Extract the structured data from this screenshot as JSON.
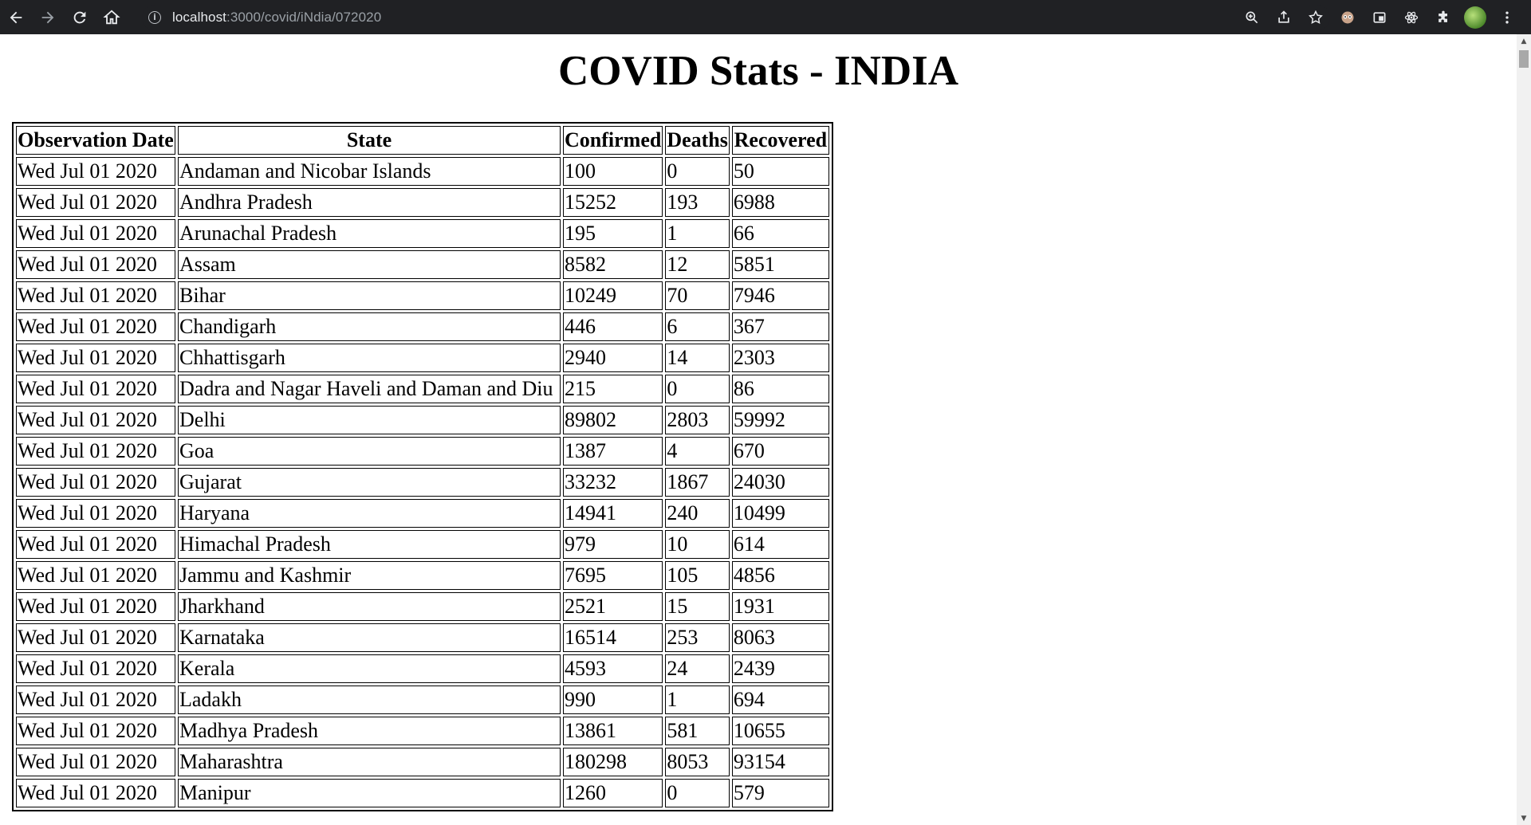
{
  "browser": {
    "url_host": "localhost",
    "url_path": ":3000/covid/iNdia/072020"
  },
  "page": {
    "title": "COVID Stats - INDIA"
  },
  "table": {
    "headers": [
      "Observation Date",
      "State",
      "Confirmed",
      "Deaths",
      "Recovered"
    ],
    "rows": [
      [
        "Wed Jul 01 2020",
        "Andaman and Nicobar Islands",
        "100",
        "0",
        "50"
      ],
      [
        "Wed Jul 01 2020",
        "Andhra Pradesh",
        "15252",
        "193",
        "6988"
      ],
      [
        "Wed Jul 01 2020",
        "Arunachal Pradesh",
        "195",
        "1",
        "66"
      ],
      [
        "Wed Jul 01 2020",
        "Assam",
        "8582",
        "12",
        "5851"
      ],
      [
        "Wed Jul 01 2020",
        "Bihar",
        "10249",
        "70",
        "7946"
      ],
      [
        "Wed Jul 01 2020",
        "Chandigarh",
        "446",
        "6",
        "367"
      ],
      [
        "Wed Jul 01 2020",
        "Chhattisgarh",
        "2940",
        "14",
        "2303"
      ],
      [
        "Wed Jul 01 2020",
        "Dadra and Nagar Haveli and Daman and Diu",
        "215",
        "0",
        "86"
      ],
      [
        "Wed Jul 01 2020",
        "Delhi",
        "89802",
        "2803",
        "59992"
      ],
      [
        "Wed Jul 01 2020",
        "Goa",
        "1387",
        "4",
        "670"
      ],
      [
        "Wed Jul 01 2020",
        "Gujarat",
        "33232",
        "1867",
        "24030"
      ],
      [
        "Wed Jul 01 2020",
        "Haryana",
        "14941",
        "240",
        "10499"
      ],
      [
        "Wed Jul 01 2020",
        "Himachal Pradesh",
        "979",
        "10",
        "614"
      ],
      [
        "Wed Jul 01 2020",
        "Jammu and Kashmir",
        "7695",
        "105",
        "4856"
      ],
      [
        "Wed Jul 01 2020",
        "Jharkhand",
        "2521",
        "15",
        "1931"
      ],
      [
        "Wed Jul 01 2020",
        "Karnataka",
        "16514",
        "253",
        "8063"
      ],
      [
        "Wed Jul 01 2020",
        "Kerala",
        "4593",
        "24",
        "2439"
      ],
      [
        "Wed Jul 01 2020",
        "Ladakh",
        "990",
        "1",
        "694"
      ],
      [
        "Wed Jul 01 2020",
        "Madhya Pradesh",
        "13861",
        "581",
        "10655"
      ],
      [
        "Wed Jul 01 2020",
        "Maharashtra",
        "180298",
        "8053",
        "93154"
      ],
      [
        "Wed Jul 01 2020",
        "Manipur",
        "1260",
        "0",
        "579"
      ]
    ]
  }
}
